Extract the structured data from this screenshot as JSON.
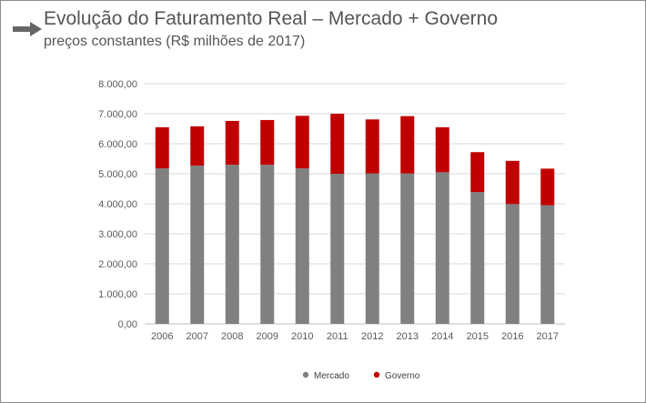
{
  "header": {
    "title": "Evolução do Faturamento Real – Mercado + Governo",
    "subtitle": "preços constantes (R$ milhões de 2017)",
    "arrow_icon": "arrow-right-icon"
  },
  "colors": {
    "mercado": "#808080",
    "governo": "#c00000",
    "grid": "#d9d9d9",
    "axis": "#bfbfbf"
  },
  "chart_data": {
    "type": "bar",
    "stacked": true,
    "categories": [
      "2006",
      "2007",
      "2008",
      "2009",
      "2010",
      "2011",
      "2012",
      "2013",
      "2014",
      "2015",
      "2016",
      "2017"
    ],
    "series": [
      {
        "name": "Mercado",
        "color": "#808080",
        "values": [
          5180,
          5270,
          5300,
          5300,
          5180,
          5000,
          5010,
          5010,
          5050,
          4390,
          3990,
          3950
        ]
      },
      {
        "name": "Governo",
        "color": "#c00000",
        "values": [
          1370,
          1310,
          1460,
          1490,
          1750,
          2000,
          1800,
          1910,
          1500,
          1330,
          1440,
          1220
        ]
      }
    ],
    "ylim": [
      0,
      8000
    ],
    "ytick_step": 1000,
    "ytick_labels": [
      "0,00",
      "1.000,00",
      "2.000,00",
      "3.000,00",
      "4.000,00",
      "5.000,00",
      "6.000,00",
      "7.000,00",
      "8.000,00"
    ],
    "grid": true,
    "legend": "bottom"
  }
}
